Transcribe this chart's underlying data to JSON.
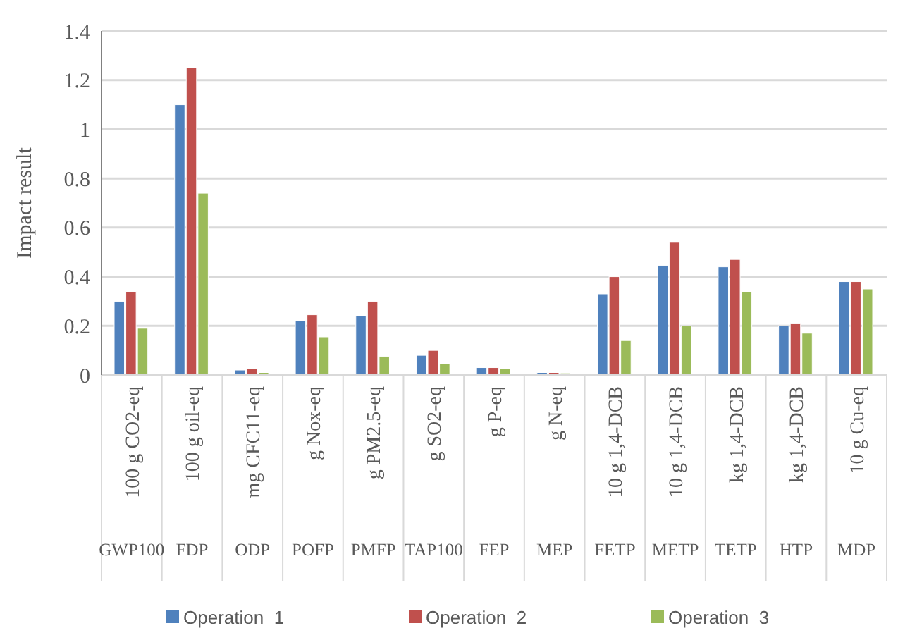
{
  "chart_data": {
    "type": "bar",
    "ylabel": "Impact result",
    "categories": [
      "100 g CO2-eq\nGWP100",
      "100 g oil-eq\nFDP",
      "mg CFC11-eq\nODP",
      "g Nox-eq\nPOFP",
      "g PM2.5-eq\nPMFP",
      "g SO2-eq\nTAP100",
      "g P-eq\nFEP",
      "g N-eq\nMEP",
      "10 g 1,4-DCB\nFETP",
      "10 g 1,4-DCB\nMETP",
      "kg 1,4-DCB\nTETP",
      "kg 1,4-DCB\nHTP",
      "10 g Cu-eq\nMDP"
    ],
    "series": [
      {
        "name": "Operation  1",
        "color": "#4f81bd",
        "values": [
          0.3,
          1.1,
          0.02,
          0.22,
          0.24,
          0.08,
          0.03,
          0.01,
          0.33,
          0.445,
          0.44,
          0.2,
          0.38
        ]
      },
      {
        "name": "Operation  2",
        "color": "#c0504d",
        "values": [
          0.34,
          1.25,
          0.025,
          0.245,
          0.3,
          0.1,
          0.03,
          0.01,
          0.4,
          0.54,
          0.47,
          0.21,
          0.38
        ]
      },
      {
        "name": "Operation  3",
        "color": "#9bbb59",
        "values": [
          0.19,
          0.74,
          0.01,
          0.155,
          0.075,
          0.045,
          0.025,
          0.008,
          0.14,
          0.2,
          0.34,
          0.17,
          0.35
        ]
      }
    ],
    "ylim": [
      0,
      1.4
    ],
    "yticks": [
      0,
      0.2,
      0.4,
      0.6,
      0.8,
      1,
      1.2,
      1.4
    ],
    "grid": "y",
    "legend": "bottom"
  }
}
